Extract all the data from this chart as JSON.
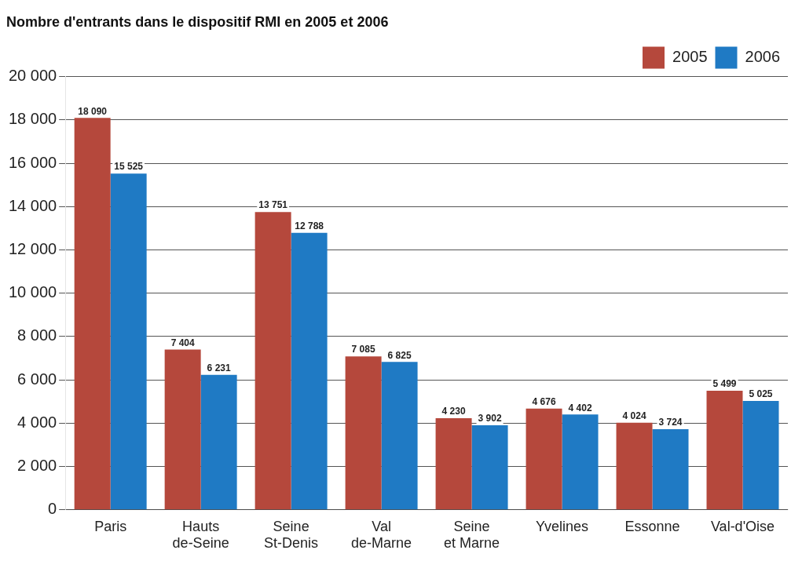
{
  "chart_data": {
    "type": "bar",
    "title": "Nombre d'entrants dans le dispositif RMI en 2005 et 2006",
    "categories": [
      "Paris",
      "Hauts\nde-Seine",
      "Seine\nSt-Denis",
      "Val\nde-Marne",
      "Seine\net Marne",
      "Yvelines",
      "Essonne",
      "Val-d'Oise"
    ],
    "series": [
      {
        "name": "2005",
        "color": "#b5483c",
        "values": [
          18090,
          7404,
          13751,
          7085,
          4230,
          4676,
          4024,
          5499
        ]
      },
      {
        "name": "2006",
        "color": "#1f7ac4",
        "values": [
          15525,
          6231,
          12788,
          6825,
          3902,
          4402,
          3724,
          5025
        ]
      }
    ],
    "ylim": [
      0,
      20000
    ],
    "yticks": [
      {
        "value": 0,
        "label": "0"
      },
      {
        "value": 2000,
        "label": "2 000"
      },
      {
        "value": 4000,
        "label": "4 000"
      },
      {
        "value": 6000,
        "label": "6 000"
      },
      {
        "value": 8000,
        "label": "8 000"
      },
      {
        "value": 10000,
        "label": "10 000"
      },
      {
        "value": 12000,
        "label": "12 000"
      },
      {
        "value": 14000,
        "label": "14 000"
      },
      {
        "value": 16000,
        "label": "16 000"
      },
      {
        "value": 18000,
        "label": "18 000"
      },
      {
        "value": 20000,
        "label": "20 000"
      }
    ],
    "grid": "y",
    "legend": "top right",
    "data_labels": true
  }
}
